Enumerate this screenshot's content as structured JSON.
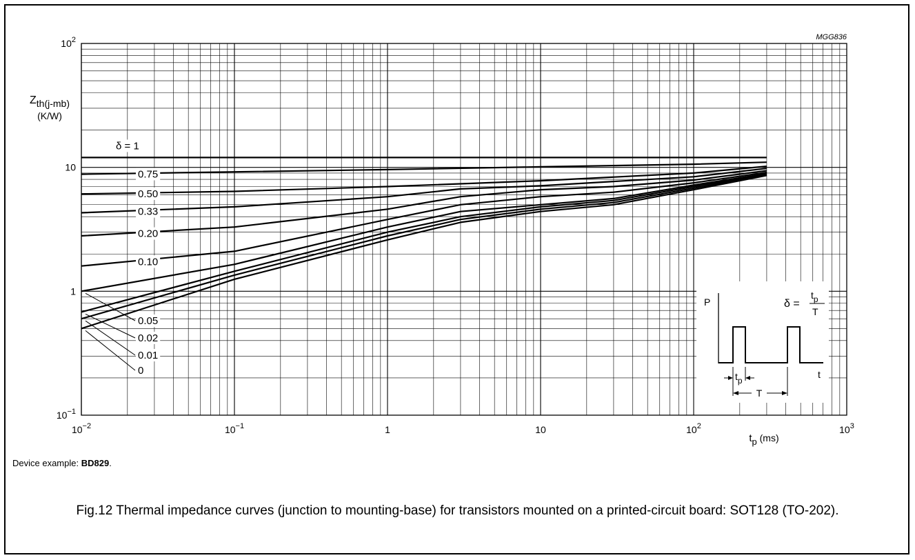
{
  "figure_code": "MGG836",
  "device_example": {
    "label": "Device example: ",
    "device": "BD829",
    "suffix": "."
  },
  "caption": "Fig.12  Thermal impedance curves (junction to mounting-base) for transistors mounted on a printed-circuit board: SOT128 (TO-202).",
  "chart_data": {
    "type": "line",
    "x_scale": "log",
    "y_scale": "log",
    "xlim": [
      0.01,
      1000
    ],
    "ylim": [
      0.1,
      100
    ],
    "x_ticks": [
      {
        "value": 0.01,
        "base": "10",
        "exp": "−2"
      },
      {
        "value": 0.1,
        "base": "10",
        "exp": "−1"
      },
      {
        "value": 1,
        "base": "1",
        "exp": ""
      },
      {
        "value": 10,
        "base": "10",
        "exp": ""
      },
      {
        "value": 100,
        "base": "10",
        "exp": "2"
      },
      {
        "value": 1000,
        "base": "10",
        "exp": "3"
      }
    ],
    "y_ticks": [
      {
        "value": 0.1,
        "base": "10",
        "exp": "−1"
      },
      {
        "value": 1,
        "base": "1",
        "exp": ""
      },
      {
        "value": 10,
        "base": "10",
        "exp": ""
      },
      {
        "value": 100,
        "base": "10",
        "exp": "2"
      }
    ],
    "xlabel": {
      "main": "t",
      "sub": "p",
      "unit": " (ms)"
    },
    "ylabel": {
      "main": "Z",
      "sub": "th(j-mb)",
      "unit": "(K/W)"
    },
    "grid": true,
    "series": [
      {
        "name": "δ = 1",
        "x": [
          0.01,
          300
        ],
        "y": [
          12,
          12
        ]
      },
      {
        "name": "0.75",
        "x": [
          0.01,
          0.1,
          1,
          10,
          100,
          300
        ],
        "y": [
          8.8,
          9.2,
          9.6,
          10.1,
          10.6,
          11.0
        ]
      },
      {
        "name": "0.50",
        "x": [
          0.01,
          0.1,
          1,
          10,
          100,
          300
        ],
        "y": [
          6.1,
          6.4,
          7.0,
          7.8,
          9.0,
          10.2
        ]
      },
      {
        "name": "0.33",
        "x": [
          0.01,
          0.1,
          1,
          3,
          10,
          100,
          300
        ],
        "y": [
          4.3,
          4.8,
          5.8,
          6.7,
          7.1,
          8.4,
          9.8
        ]
      },
      {
        "name": "0.20",
        "x": [
          0.01,
          0.1,
          1,
          3,
          10,
          30,
          100,
          300
        ],
        "y": [
          2.8,
          3.3,
          4.6,
          5.8,
          6.6,
          7.0,
          7.9,
          9.4
        ]
      },
      {
        "name": "0.10",
        "x": [
          0.01,
          0.1,
          1,
          3,
          10,
          30,
          100,
          300
        ],
        "y": [
          1.6,
          2.1,
          3.8,
          5.0,
          5.8,
          6.3,
          7.5,
          9.1
        ]
      },
      {
        "name": "0.05",
        "x": [
          0.01,
          0.1,
          1,
          3,
          10,
          30,
          100,
          300
        ],
        "y": [
          1.0,
          1.65,
          3.3,
          4.4,
          5.0,
          5.6,
          7.2,
          8.9
        ]
      },
      {
        "name": "0.02",
        "x": [
          0.01,
          0.1,
          1,
          3,
          10,
          30,
          100,
          300
        ],
        "y": [
          0.68,
          1.45,
          3.0,
          4.0,
          4.8,
          5.4,
          7.0,
          8.8
        ]
      },
      {
        "name": "0.01",
        "x": [
          0.01,
          0.1,
          1,
          3,
          10,
          30,
          100,
          300
        ],
        "y": [
          0.6,
          1.35,
          2.8,
          3.8,
          4.6,
          5.2,
          6.8,
          8.7
        ]
      },
      {
        "name": "0",
        "x": [
          0.01,
          0.1,
          1,
          3,
          10,
          30,
          100,
          300
        ],
        "y": [
          0.5,
          1.25,
          2.6,
          3.6,
          4.4,
          5.0,
          6.6,
          8.6
        ]
      }
    ],
    "inset": {
      "p_label": "P",
      "t_label": "t",
      "tp_label": {
        "main": "t",
        "sub": "p"
      },
      "T_label": "T",
      "formula": {
        "lhs": "δ =",
        "num_main": "t",
        "num_sub": "p",
        "den": "T"
      }
    }
  }
}
